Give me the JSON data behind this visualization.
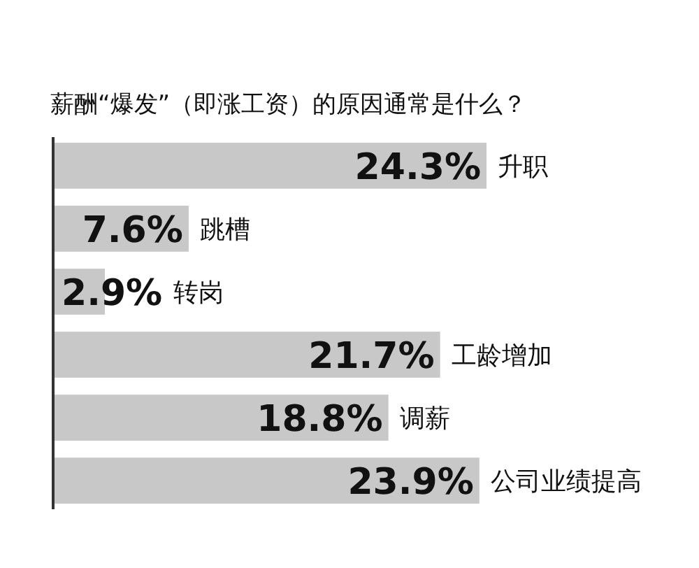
{
  "chart_data": {
    "type": "bar",
    "orientation": "horizontal",
    "title": "薪酬“爆发”（即涨工资）的原因通常是什么？",
    "categories": [
      "升职",
      "跳槽",
      "转岗",
      "工龄增加",
      "调薪",
      "公司业绩提高"
    ],
    "values": [
      24.3,
      7.6,
      2.9,
      21.7,
      18.8,
      23.9
    ],
    "value_labels": [
      "24.3%",
      "7.6%",
      "2.9%",
      "21.7%",
      "18.8%",
      "23.9%"
    ],
    "color": "#c8c8c8"
  }
}
